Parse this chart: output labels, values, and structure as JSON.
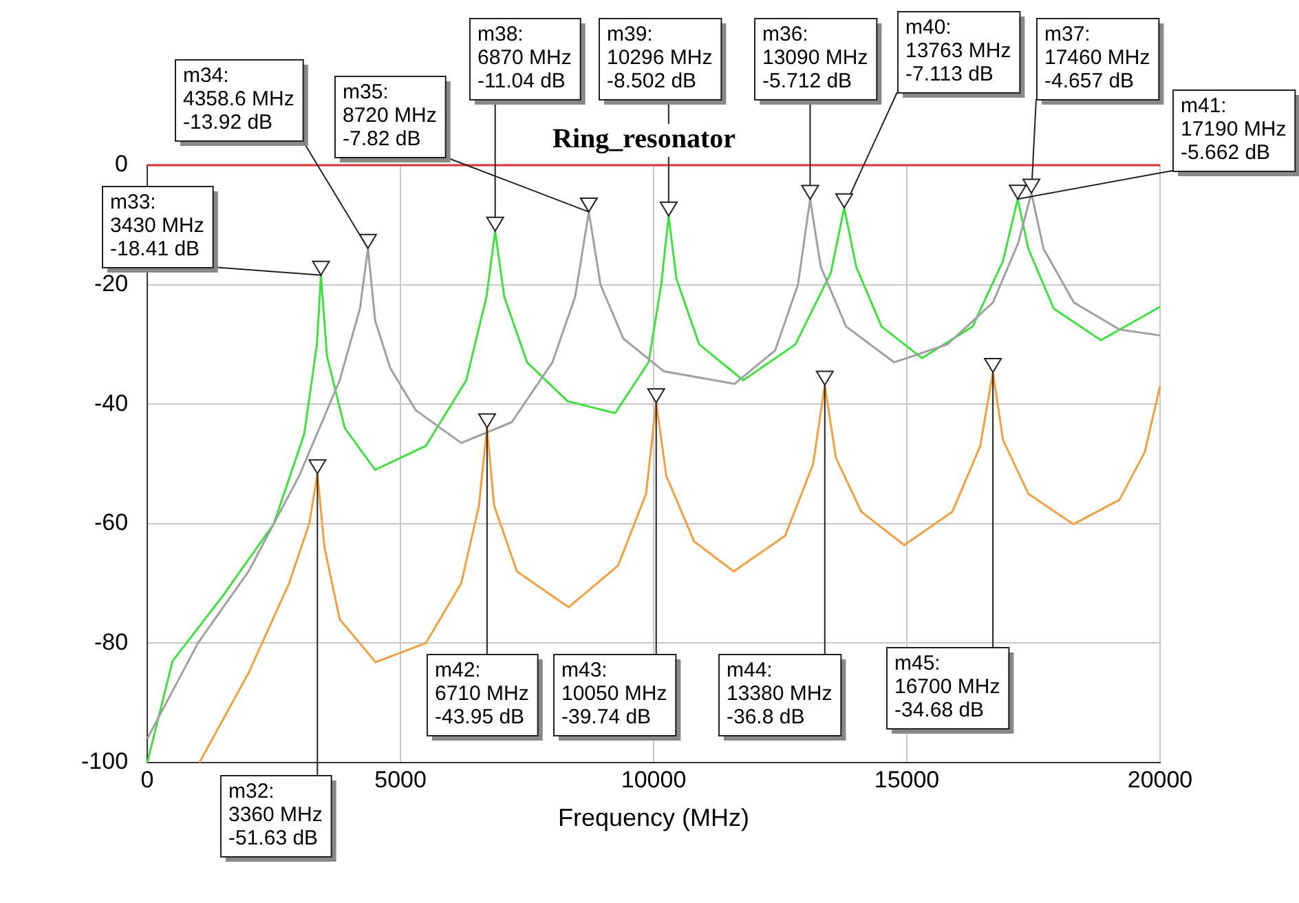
{
  "chart_data": {
    "type": "line",
    "title": "Ring_resonator",
    "xlabel": "Frequency (MHz)",
    "xlim": [
      0,
      20000
    ],
    "xticks": [
      0,
      5000,
      10000,
      15000,
      20000
    ],
    "ylim": [
      -100,
      0
    ],
    "yticks": [
      -100,
      -80,
      -60,
      -40,
      -20,
      0
    ],
    "grid": true,
    "legend": false,
    "line_style": "solid",
    "series": [
      {
        "color": "#e03030",
        "x": [
          0,
          20000
        ],
        "values": [
          0,
          0
        ]
      },
      {
        "color": "#a0a0a0",
        "x": [
          0,
          1000,
          2000,
          3000,
          3800,
          4200,
          4358.6,
          4500,
          4800,
          5300,
          6200,
          7200,
          8000,
          8450,
          8720,
          8950,
          9400,
          10200,
          11600,
          12400,
          12850,
          13090,
          13300,
          13800,
          14750,
          15800,
          16700,
          17200,
          17460,
          17700,
          18300,
          19200,
          20000
        ],
        "values": [
          -96,
          -80,
          -68,
          -52,
          -36,
          -24,
          -13.92,
          -26,
          -34,
          -41,
          -46.5,
          -43,
          -33,
          -22,
          -7.82,
          -20,
          -29,
          -34.5,
          -36.6,
          -31,
          -20,
          -5.712,
          -17,
          -27,
          -33,
          -30,
          -23,
          -13,
          -4.657,
          -14,
          -23,
          -27.5,
          -28.5
        ]
      },
      {
        "color": "#40e040",
        "x": [
          0,
          500,
          1500,
          2500,
          3100,
          3350,
          3430,
          3550,
          3900,
          4500,
          5500,
          6300,
          6700,
          6870,
          7050,
          7500,
          8300,
          9240,
          9900,
          10150,
          10296,
          10450,
          10900,
          11770,
          12800,
          13500,
          13763,
          14000,
          14500,
          15300,
          16300,
          16900,
          17190,
          17400,
          17900,
          18830,
          20000
        ],
        "values": [
          -100,
          -83,
          -72,
          -60,
          -45,
          -30,
          -18.41,
          -32,
          -44,
          -51,
          -47,
          -36,
          -22,
          -11.04,
          -22,
          -33,
          -39.5,
          -41.5,
          -33,
          -20,
          -8.502,
          -19,
          -30,
          -36,
          -30,
          -18,
          -7.113,
          -17,
          -27,
          -32.3,
          -27,
          -16,
          -5.662,
          -14,
          -24,
          -29.3,
          -23.7
        ]
      },
      {
        "color": "#f0a040",
        "x": [
          1030,
          2000,
          2800,
          3200,
          3360,
          3500,
          3800,
          4510,
          5500,
          6200,
          6550,
          6710,
          6850,
          7300,
          8320,
          9300,
          9850,
          10050,
          10250,
          10800,
          11580,
          12600,
          13150,
          13380,
          13600,
          14100,
          14950,
          15900,
          16450,
          16700,
          16900,
          17400,
          18290,
          19200,
          19700,
          20000
        ],
        "values": [
          -100,
          -85,
          -70,
          -60,
          -51.63,
          -64,
          -76,
          -83.2,
          -80,
          -70,
          -57,
          -43.95,
          -57,
          -68,
          -74,
          -67,
          -55,
          -39.74,
          -52,
          -63,
          -68,
          -62,
          -50,
          -36.8,
          -49,
          -58,
          -63.6,
          -58,
          -47,
          -34.68,
          -46,
          -55,
          -60.1,
          -56,
          -48,
          -37
        ]
      }
    ],
    "annotations": [
      {
        "text": "m32:\n3360 MHz\n-51.63 dB",
        "x": 3360,
        "y": -51.63
      },
      {
        "text": "m33:\n3430 MHz\n-18.41 dB",
        "x": 3430,
        "y": -18.41
      },
      {
        "text": "m34:\n4358.6 MHz\n-13.92 dB",
        "x": 4358.6,
        "y": -13.92
      },
      {
        "text": "m35:\n8720 MHz\n-7.82 dB",
        "x": 8720,
        "y": -7.82
      },
      {
        "text": "m36:\n13090 MHz\n-5.712 dB",
        "x": 13090,
        "y": -5.712
      },
      {
        "text": "m37:\n17460 MHz\n-4.657 dB",
        "x": 17460,
        "y": -4.657
      },
      {
        "text": "m38:\n6870 MHz\n-11.04 dB",
        "x": 6870,
        "y": -11.04
      },
      {
        "text": "m39:\n10296 MHz\n-8.502 dB",
        "x": 10296,
        "y": -8.502
      },
      {
        "text": "m40:\n13763 MHz\n-7.113 dB",
        "x": 13763,
        "y": -7.113
      },
      {
        "text": "m41:\n17190 MHz\n-5.662 dB",
        "x": 17190,
        "y": -5.662
      },
      {
        "text": "m42:\n6710 MHz\n-43.95 dB",
        "x": 6710,
        "y": -43.95
      },
      {
        "text": "m43:\n10050 MHz\n-39.74 dB",
        "x": 10050,
        "y": -39.74
      },
      {
        "text": "m44:\n13380 MHz\n-36.8 dB",
        "x": 13380,
        "y": -36.8
      },
      {
        "text": "m45:\n16700 MHz\n-34.68 dB",
        "x": 16700,
        "y": -34.68
      }
    ]
  }
}
